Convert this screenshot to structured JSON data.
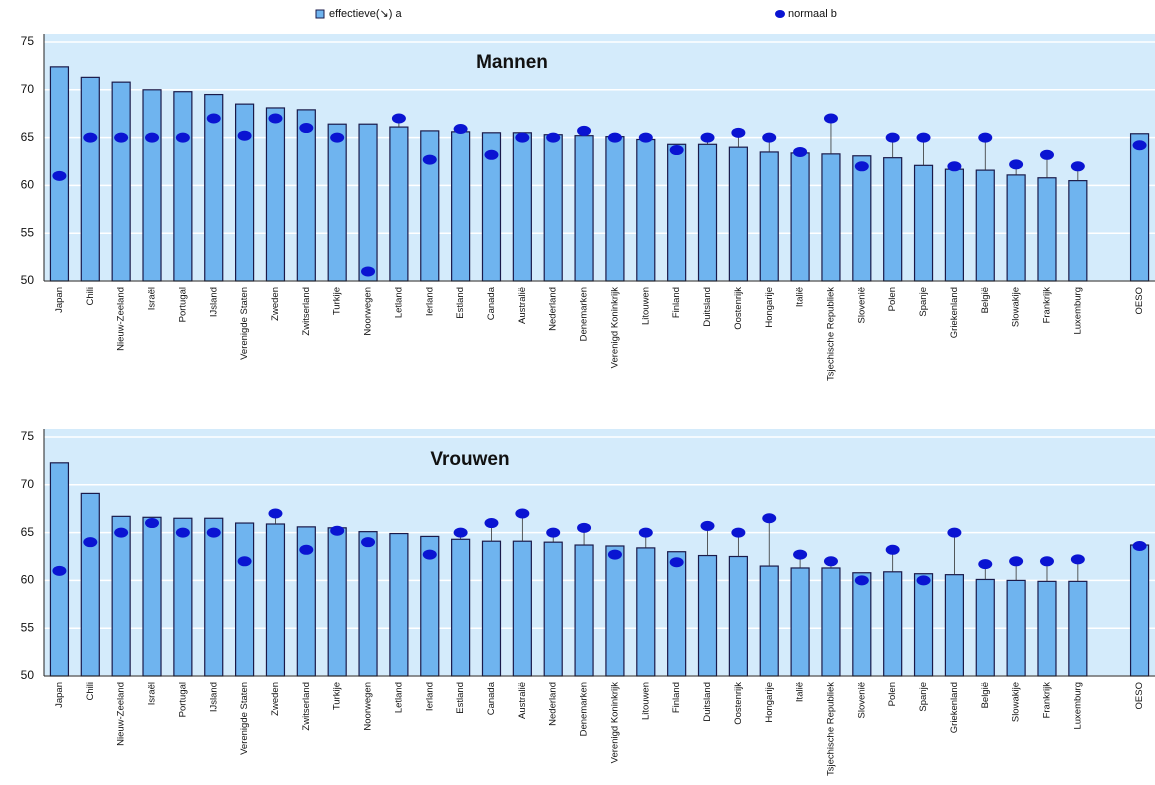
{
  "chart_data": [
    {
      "type": "bar",
      "title": "Mannen",
      "categories": [
        "Japan",
        "Chili",
        "Nieuw-Zeeland",
        "Israël",
        "Portugal",
        "IJsland",
        "Verenigde Staten",
        "Zweden",
        "Zwitserland",
        "Turkije",
        "Noorwegen",
        "Letland",
        "Ierland",
        "Estland",
        "Canada",
        "Australië",
        "Nederland",
        "Denemarken",
        "Verenigd Koninkrijk",
        "Litouwen",
        "Finland",
        "Duitsland",
        "Oostenrijk",
        "Hongarije",
        "Italië",
        "Tsjechische Republiek",
        "Slovenië",
        "Polen",
        "Spanje",
        "Griekenland",
        "België",
        "Slowakije",
        "Frankrijk",
        "Luxemburg",
        null,
        "OESO"
      ],
      "series": [
        {
          "name": "effectieve(↘) a",
          "type": "bar",
          "color": "#6fb4ef",
          "values": [
            72.4,
            71.3,
            70.8,
            70.0,
            69.8,
            69.5,
            68.5,
            68.1,
            67.9,
            66.4,
            66.4,
            66.1,
            65.7,
            65.6,
            65.5,
            65.5,
            65.3,
            65.2,
            65.1,
            64.8,
            64.3,
            64.3,
            64.0,
            63.5,
            63.4,
            63.3,
            63.1,
            62.9,
            62.1,
            61.7,
            61.6,
            61.1,
            60.8,
            60.5,
            null,
            65.4
          ]
        },
        {
          "name": "normaal b",
          "type": "scatter",
          "color": "#0a14d2",
          "values": [
            61,
            65,
            65,
            65,
            65,
            67,
            65.2,
            67,
            66,
            65,
            51,
            67,
            62.7,
            65.9,
            63.2,
            65,
            65,
            65.7,
            65,
            65,
            63.7,
            65,
            65.5,
            65,
            63.5,
            67,
            62,
            65,
            65,
            62,
            65,
            62.2,
            63.2,
            62,
            null,
            64.2
          ]
        }
      ],
      "ylim": [
        50,
        75
      ],
      "yticks": [
        50,
        55,
        60,
        65,
        70,
        75
      ],
      "grid": true
    },
    {
      "type": "bar",
      "title": "Vrouwen",
      "categories": [
        "Japan",
        "Chili",
        "Nieuw-Zeeland",
        "Israël",
        "Portugal",
        "IJsland",
        "Verenigde Staten",
        "Zweden",
        "Zwitserland",
        "Turkije",
        "Noorwegen",
        "Letland",
        "Ierland",
        "Estland",
        "Canada",
        "Australië",
        "Nederland",
        "Denemarken",
        "Verenigd Koninkrijk",
        "Litouwen",
        "Finland",
        "Duitsland",
        "Oostenrijk",
        "Hongarije",
        "Italië",
        "Tsjechische Republiek",
        "Slovenië",
        "Polen",
        "Spanje",
        "Griekenland",
        "België",
        "Slowakije",
        "Frankrijk",
        "Luxemburg",
        null,
        "OESO"
      ],
      "series": [
        {
          "type": "bar",
          "color": "#6fb4ef",
          "values": [
            72.3,
            69.1,
            66.7,
            66.6,
            66.5,
            66.5,
            66.0,
            65.9,
            65.6,
            65.5,
            65.1,
            64.9,
            64.6,
            64.3,
            64.1,
            64.1,
            64.0,
            63.7,
            63.6,
            63.4,
            63.0,
            62.6,
            62.5,
            61.5,
            61.3,
            61.3,
            60.8,
            60.9,
            60.7,
            60.6,
            60.1,
            60.0,
            59.9,
            59.9,
            null,
            63.7
          ]
        },
        {
          "type": "scatter",
          "color": "#0a14d2",
          "values": [
            61,
            64,
            65,
            66,
            65,
            65,
            62,
            67,
            63.2,
            65.2,
            64,
            null,
            62.7,
            65,
            66,
            67,
            65,
            65.5,
            62.7,
            65,
            61.9,
            65.7,
            65,
            66.5,
            62.7,
            62,
            60,
            63.2,
            60,
            65,
            61.7,
            62,
            62,
            62.2,
            null,
            63.6
          ]
        }
      ],
      "ylim": [
        50,
        75
      ],
      "yticks": [
        50,
        55,
        60,
        65,
        70,
        75
      ],
      "grid": true
    }
  ]
}
